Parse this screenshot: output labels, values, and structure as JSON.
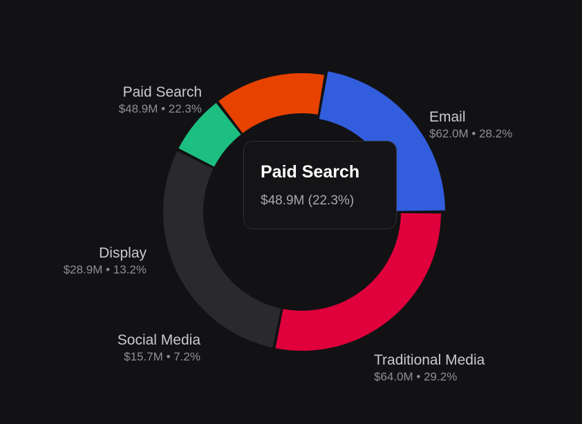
{
  "chart_data": {
    "type": "pie",
    "variant": "donut",
    "slices": [
      {
        "name": "Email",
        "value_label": "$62.0M",
        "value": 62.0,
        "percent": 28.2,
        "percent_label": "28.2%",
        "color": "#e0003c"
      },
      {
        "name": "Traditional Media",
        "value_label": "$64.0M",
        "value": 64.0,
        "percent": 29.2,
        "percent_label": "29.2%",
        "color": "#2a2a2d"
      },
      {
        "name": "Social Media",
        "value_label": "$15.7M",
        "value": 15.7,
        "percent": 7.2,
        "percent_label": "7.2%",
        "color": "#1dbf80"
      },
      {
        "name": "Display",
        "value_label": "$28.9M",
        "value": 28.9,
        "percent": 13.2,
        "percent_label": "13.2%",
        "color": "#e84200"
      },
      {
        "name": "Paid Search",
        "value_label": "$48.9M",
        "value": 48.9,
        "percent": 22.3,
        "percent_label": "22.3%",
        "color": "#325ddc"
      }
    ],
    "highlighted": "Paid Search",
    "tooltip": {
      "title": "Paid Search",
      "value": "$48.9M (22.3%)"
    }
  }
}
